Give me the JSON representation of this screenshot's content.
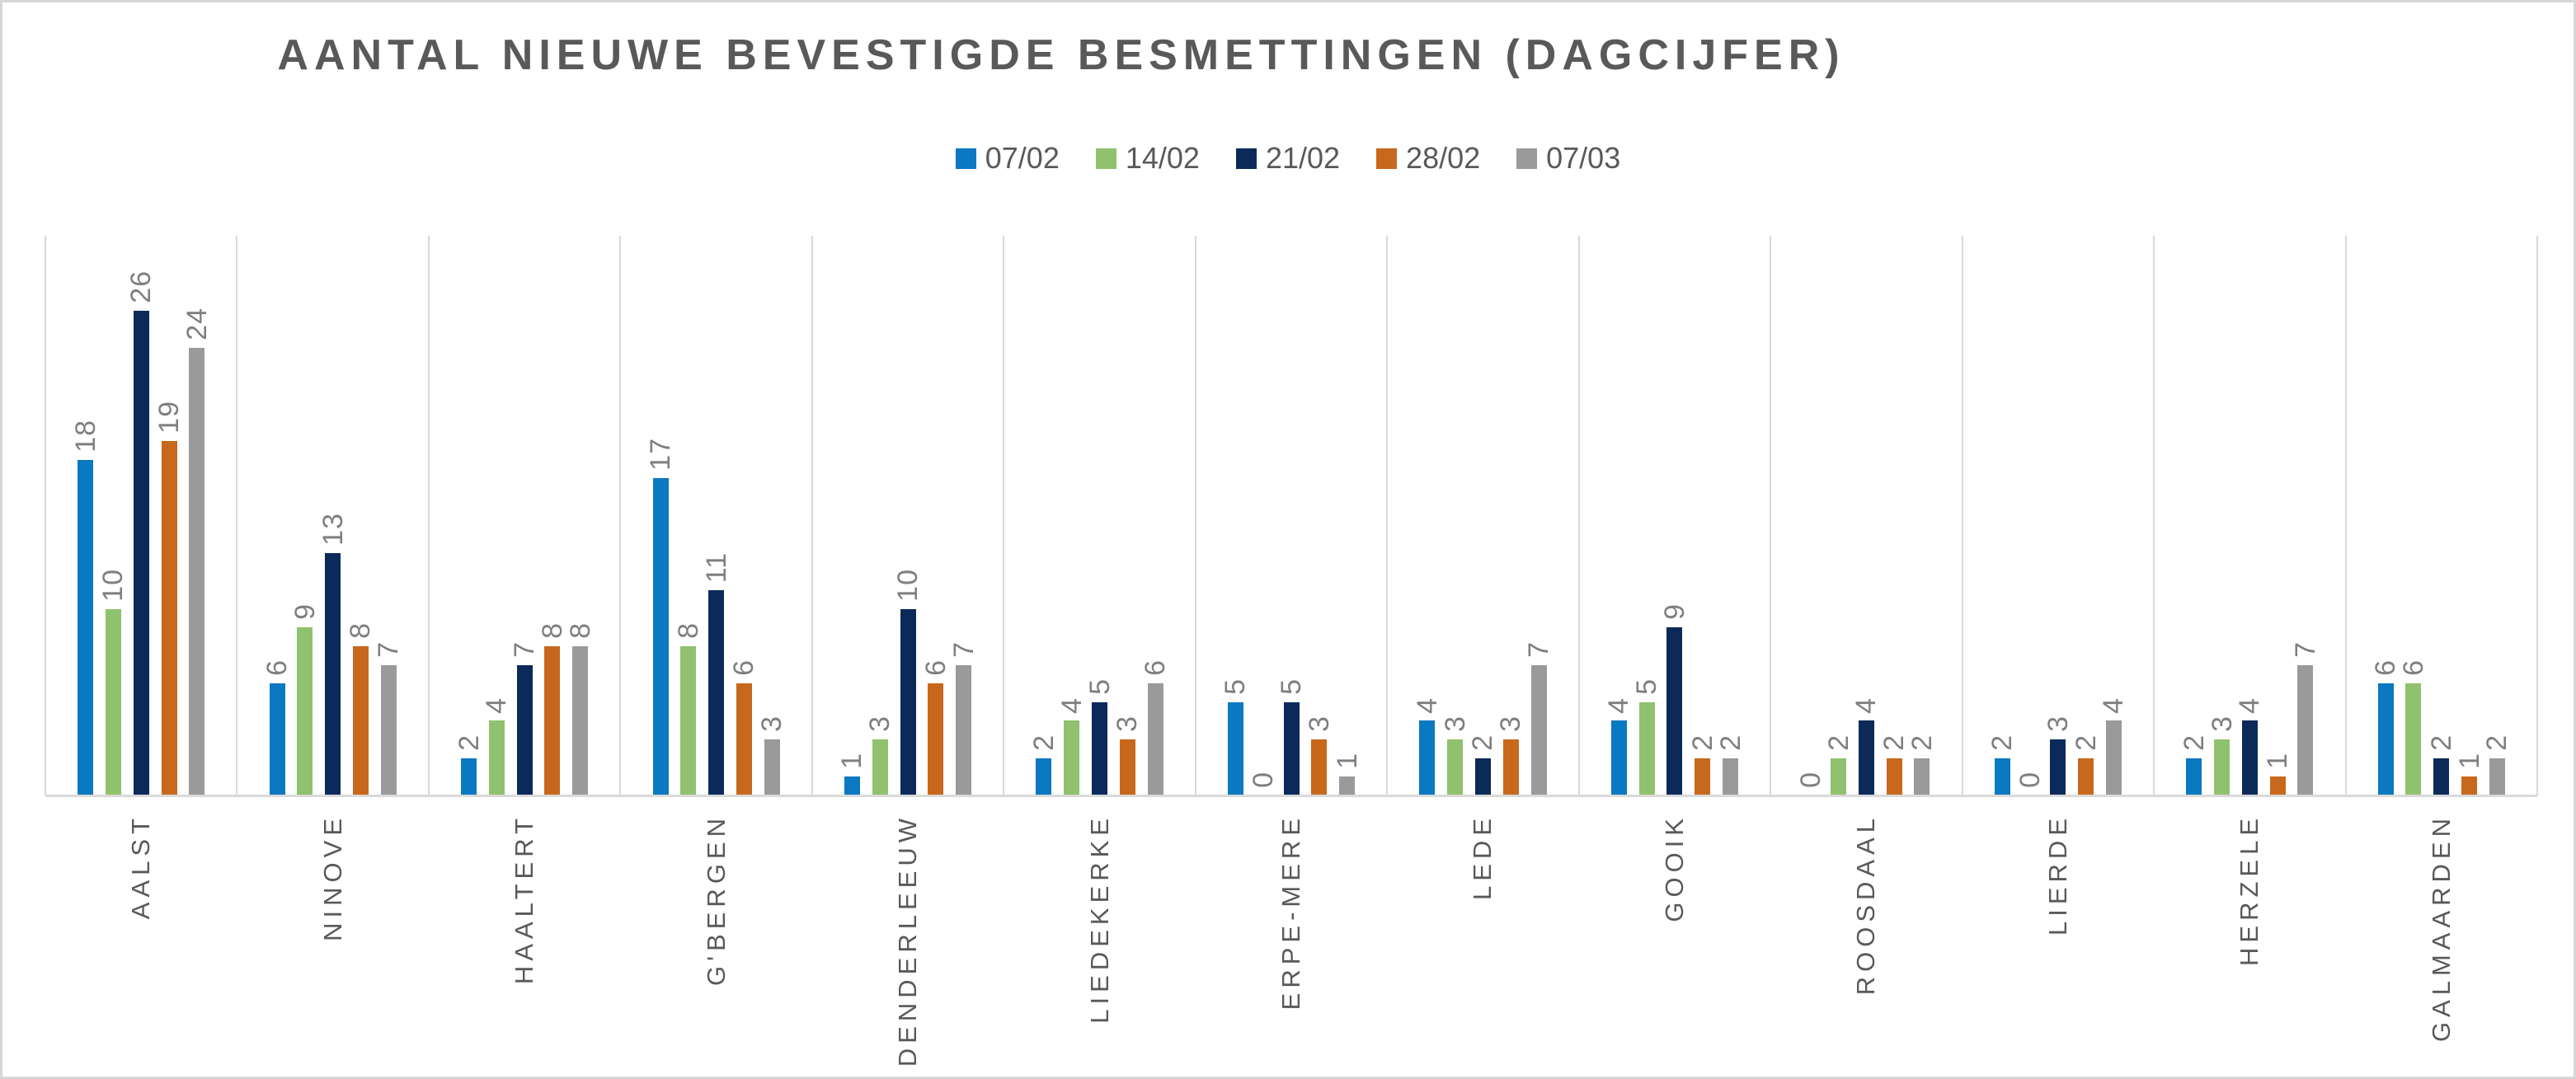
{
  "title": "AANTAL NIEUWE BEVESTIGDE BESMETTINGEN (DAGCIJFER)",
  "chart_data": {
    "type": "bar",
    "title": "AANTAL NIEUWE BEVESTIGDE BESMETTINGEN (DAGCIJFER)",
    "categories": [
      "AALST",
      "NINOVE",
      "HAALTERT",
      "G'BERGEN",
      "DENDERLEEUW",
      "LIEDEKERKE",
      "ERPE-MERE",
      "LEDE",
      "GOOIK",
      "ROOSDAAL",
      "LIERDE",
      "HERZELE",
      "GALMAARDEN"
    ],
    "series": [
      {
        "name": "07/02",
        "color": "#0b78c2",
        "values": [
          18,
          6,
          2,
          17,
          1,
          2,
          5,
          4,
          4,
          0,
          2,
          2,
          6
        ]
      },
      {
        "name": "14/02",
        "color": "#90c16e",
        "values": [
          10,
          9,
          4,
          8,
          3,
          4,
          0,
          3,
          5,
          2,
          0,
          3,
          6
        ]
      },
      {
        "name": "21/02",
        "color": "#0b2a59",
        "values": [
          26,
          13,
          7,
          11,
          10,
          5,
          5,
          2,
          9,
          4,
          3,
          4,
          2
        ]
      },
      {
        "name": "28/02",
        "color": "#c8681c",
        "values": [
          19,
          8,
          8,
          6,
          6,
          3,
          3,
          3,
          2,
          2,
          2,
          1,
          1
        ]
      },
      {
        "name": "07/03",
        "color": "#9a9a9a",
        "values": [
          24,
          7,
          8,
          3,
          7,
          6,
          1,
          7,
          2,
          2,
          4,
          7,
          2
        ]
      }
    ],
    "xlabel": "",
    "ylabel": "",
    "ylim": [
      0,
      30
    ],
    "grid": "vertical-only",
    "legend_position": "top-center",
    "data_labels": "above-bars-rotated-90ccw",
    "category_labels": "rotated-90ccw"
  },
  "colors": {
    "background": "#ffffff",
    "frame_border": "#d6d6d6",
    "gridline": "#d9d9d9",
    "axis_line": "#d9d9d9",
    "title_text": "#595959",
    "legend_text": "#595959",
    "category_text": "#595959",
    "value_label_text": "#7f7f7f"
  }
}
